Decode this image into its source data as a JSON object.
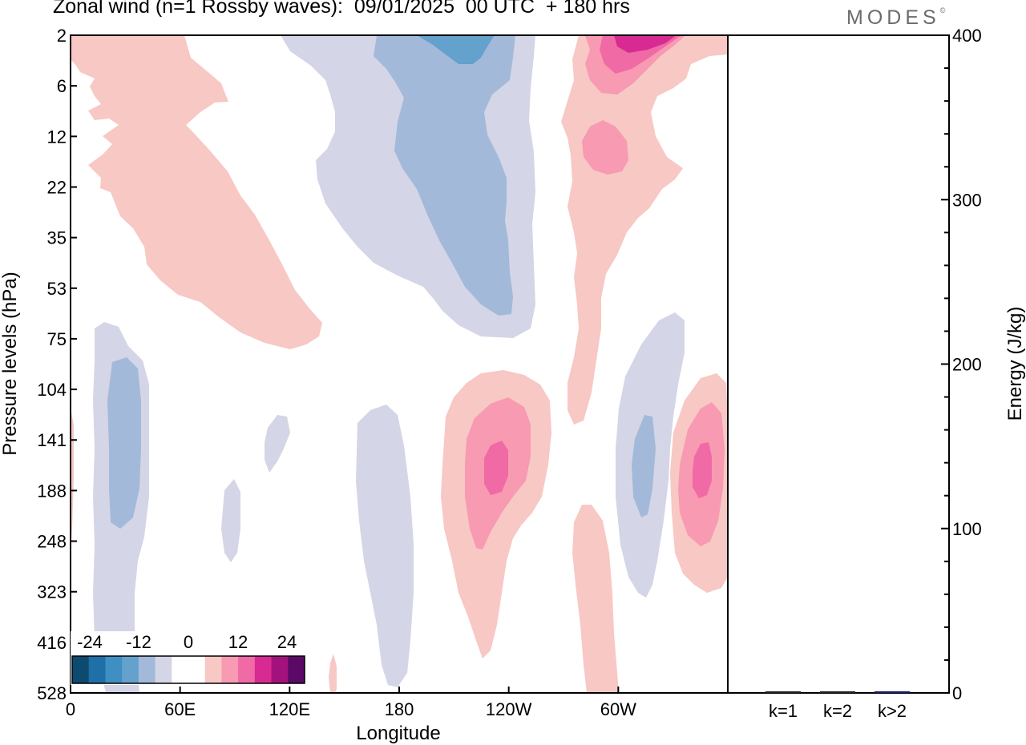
{
  "header": {
    "title": "Zonal wind (n=1 Rossby waves):  09/01/2025  00 UTC  + 180 hrs",
    "brand": "MODES",
    "brand_mark": "©"
  },
  "colors": {
    "neg_strong": "#0d4a70",
    "neg_2": "#1f6fa8",
    "neg_3": "#3f8fc4",
    "neg_4": "#64a1cc",
    "neg_5": "#a3b9d9",
    "neg_6": "#d4d5e6",
    "zero": "#ffffff",
    "pos_1": "#f8c8c4",
    "pos_2": "#f79ab2",
    "pos_3": "#f06aa6",
    "pos_4": "#d82a92",
    "pos_5": "#a3127c",
    "pos_strong": "#5a0a66"
  },
  "chart_data": [
    {
      "type": "heatmap",
      "title": "Zonal wind (n=1 Rossby waves):  09/01/2025  00 UTC  + 180 hrs",
      "xlabel": "Longitude",
      "ylabel": "Pressure levels (hPa)",
      "x_ticks": [
        "0",
        "60E",
        "120E",
        "180",
        "120W",
        "60W"
      ],
      "x_tick_degrees": [
        0,
        60,
        120,
        180,
        240,
        300
      ],
      "xlim": [
        0,
        360
      ],
      "y_ticks": [
        "2",
        "6",
        "12",
        "22",
        "35",
        "53",
        "75",
        "104",
        "141",
        "188",
        "248",
        "323",
        "416",
        "528"
      ],
      "grid": false,
      "colorbar": {
        "labels": [
          "-24",
          "-12",
          "0",
          "12",
          "24"
        ],
        "levels": [
          -24,
          -20,
          -16,
          -12,
          -8,
          -4,
          4,
          8,
          12,
          16,
          20,
          24
        ],
        "placement": "bottom-left inside plot"
      },
      "features": [
        {
          "sign": "positive",
          "level": 4,
          "lon_range": [
            0,
            137
          ],
          "p_range": [
            "2",
            "75"
          ],
          "description": "upper-level positive band"
        },
        {
          "sign": "negative",
          "level": -8,
          "lon_range": [
            115,
            255
          ],
          "p_range": [
            "2",
            "75"
          ]
        },
        {
          "sign": "negative",
          "level": -12,
          "lon_range": [
            166,
            241
          ],
          "p_range": [
            "2",
            "53"
          ]
        },
        {
          "sign": "negative",
          "level": -16,
          "lon_range": [
            195,
            232
          ],
          "p_range": [
            "2",
            "6"
          ]
        },
        {
          "sign": "positive",
          "level": 20,
          "lon_range": [
            287,
            322
          ],
          "p_range": [
            "2",
            "6"
          ]
        },
        {
          "sign": "positive",
          "level": 12,
          "lon_range": [
            281,
            297
          ],
          "p_range": [
            "12",
            "22"
          ]
        },
        {
          "sign": "negative",
          "level": -12,
          "lon_range": [
            18,
            40
          ],
          "p_range": [
            "104",
            "248"
          ]
        },
        {
          "sign": "positive",
          "level": 16,
          "lon_range": [
            226,
            238
          ],
          "p_range": [
            "141",
            "188"
          ]
        },
        {
          "sign": "positive",
          "level": 16,
          "lon_range": [
            332,
            343
          ],
          "p_range": [
            "141",
            "188"
          ]
        },
        {
          "sign": "negative",
          "level": -12,
          "lon_range": [
            310,
            320
          ],
          "p_range": [
            "141",
            "248"
          ]
        }
      ]
    },
    {
      "type": "bar",
      "title": "",
      "xlabel": "",
      "ylabel": "Energy (J/kg)",
      "categories": [
        "k=1",
        "k=2",
        "k>2"
      ],
      "values": [
        0.6,
        0.4,
        0.9
      ],
      "ylim": [
        0,
        400
      ],
      "y_ticks": [
        "0",
        "100",
        "200",
        "300",
        "400"
      ],
      "grid": false
    }
  ]
}
